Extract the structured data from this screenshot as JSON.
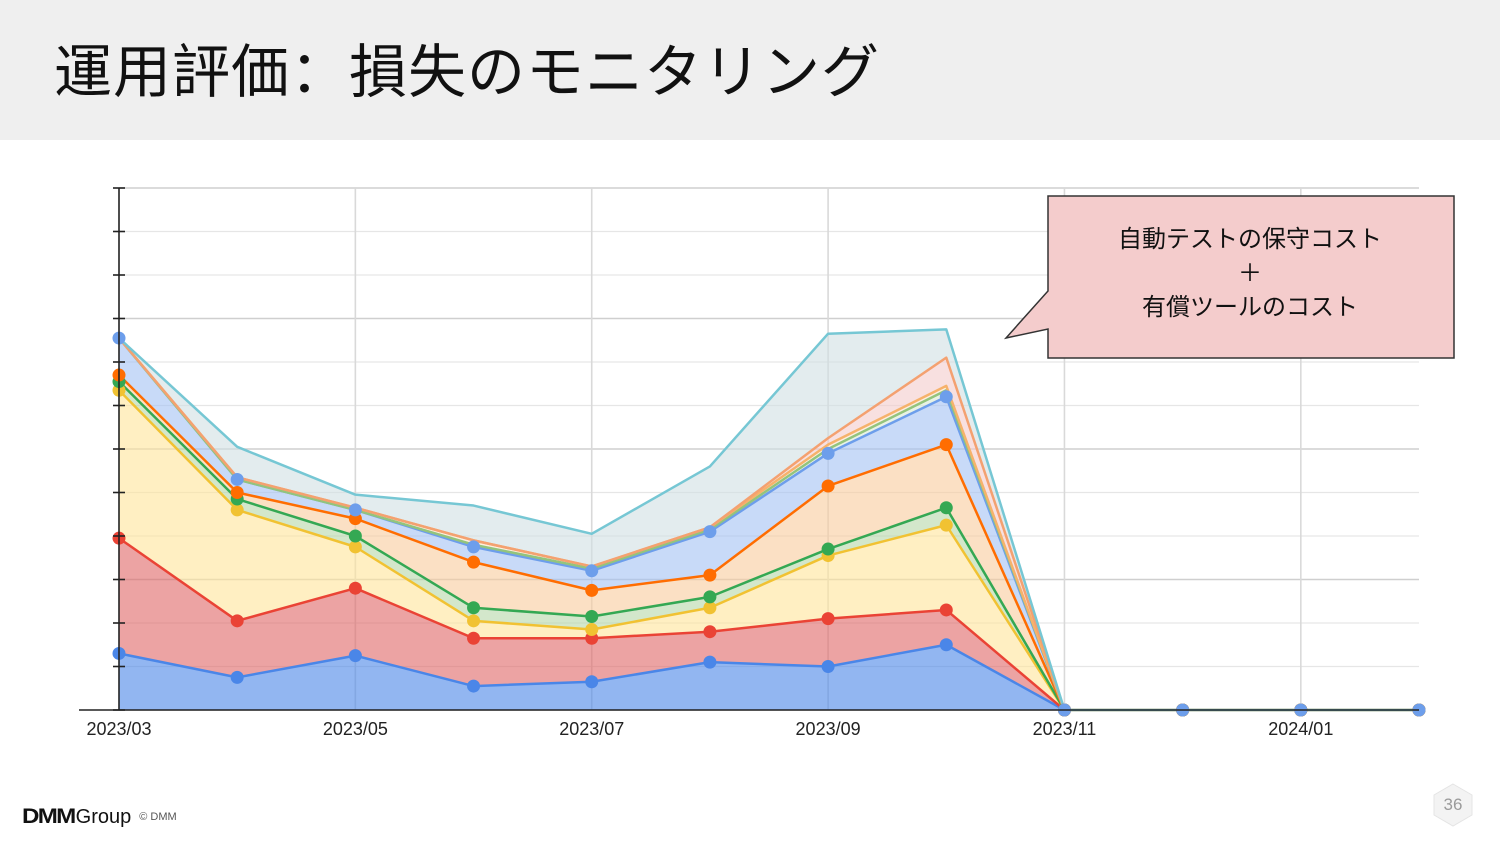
{
  "slide": {
    "title": "運用評価：損失のモニタリング",
    "page_number": "36"
  },
  "callout": {
    "line1": "自動テストの保守コスト",
    "line2": "＋",
    "line3": "有償ツールのコスト",
    "fill": "#f4cccc",
    "border": "#333333"
  },
  "footer": {
    "logo_brand": "DMM",
    "logo_group": "Group",
    "copyright": "© DMM"
  },
  "chart_data": {
    "type": "area",
    "stacked": true,
    "title": "",
    "xlabel": "",
    "ylabel": "",
    "y_tick_labels_shown": false,
    "x": [
      "2023/03",
      "2023/04",
      "2023/05",
      "2023/06",
      "2023/07",
      "2023/08",
      "2023/09",
      "2023/10",
      "2023/11",
      "2023/12",
      "2024/01",
      "2024/02"
    ],
    "x_tick_labels": [
      "2023/03",
      "2023/05",
      "2023/07",
      "2023/09",
      "2023/11",
      "2024/01"
    ],
    "ylim": [
      0,
      120
    ],
    "grid": true,
    "series": [
      {
        "name": "series-blue",
        "color": "#4a86e8",
        "markers": true,
        "values": [
          13,
          7.5,
          12.5,
          5.5,
          6.5,
          11,
          10,
          15,
          0,
          0,
          0,
          0
        ]
      },
      {
        "name": "series-red",
        "color": "#e06666",
        "line": "#ea4335",
        "markers": true,
        "values": [
          26.5,
          13,
          15.5,
          11,
          10,
          7,
          11,
          8,
          0,
          0,
          0,
          0
        ]
      },
      {
        "name": "series-yellow",
        "color": "#ffe599",
        "line": "#f1c232",
        "markers": true,
        "values": [
          34,
          25.5,
          9.5,
          4,
          2,
          5.5,
          14.5,
          19.5,
          0,
          0,
          0,
          0
        ]
      },
      {
        "name": "series-green",
        "color": "#b6d7a8",
        "line": "#34a853",
        "markers": true,
        "values": [
          2,
          2.5,
          2.5,
          3,
          3,
          2.5,
          1.5,
          4,
          0,
          0,
          0,
          0
        ]
      },
      {
        "name": "series-orange",
        "color": "#f9cb9c",
        "line": "#ff6d01",
        "markers": true,
        "values": [
          1.5,
          1.5,
          4,
          10.5,
          6,
          5,
          14.5,
          14.5,
          0,
          0,
          0,
          0
        ]
      },
      {
        "name": "series-lightblue",
        "color": "#a4c2f4",
        "line": "#6d9eeb",
        "markers": true,
        "values": [
          8.5,
          3,
          2,
          3.5,
          4.5,
          10,
          7.5,
          11,
          0,
          0,
          0,
          0
        ]
      },
      {
        "name": "series-lightgreen",
        "color": "#d9ead3",
        "line": "#93c47d",
        "markers": false,
        "values": [
          0,
          0,
          0,
          0.5,
          0.5,
          0.5,
          1,
          1.5,
          0,
          0,
          0,
          0
        ]
      },
      {
        "name": "series-lightorange",
        "color": "#fce5cd",
        "line": "#f6b26b",
        "markers": false,
        "values": [
          0,
          0.5,
          0.5,
          1,
          0.5,
          0.5,
          1,
          1,
          0,
          0,
          0,
          0
        ]
      },
      {
        "name": "series-salmon",
        "color": "#f4cccc",
        "line": "#f4a170",
        "markers": false,
        "values": [
          0,
          0,
          0,
          0,
          0,
          0,
          1.5,
          6.5,
          0,
          0,
          0,
          0
        ]
      },
      {
        "name": "series-teal",
        "color": "#d0e0e3",
        "line": "#76c7d4",
        "markers": false,
        "values": [
          0,
          7,
          3,
          8,
          7.5,
          14,
          24,
          6.5,
          0,
          0,
          0,
          0
        ]
      }
    ]
  }
}
